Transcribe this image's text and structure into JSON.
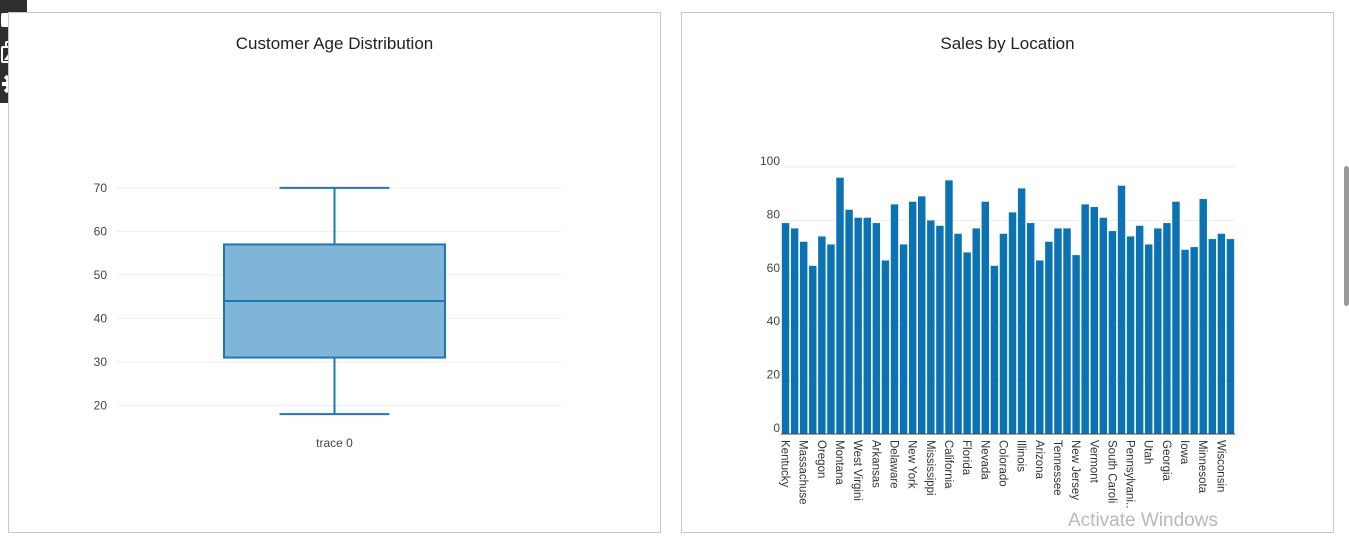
{
  "toolbar": {
    "icons": [
      "video-camera-icon",
      "image-gallery-icon",
      "gear-icon"
    ]
  },
  "watermark": "Activate Windows",
  "chart_data": [
    {
      "type": "box",
      "title": "Customer Age Distribution",
      "series": [
        {
          "name": "trace 0",
          "min": 18,
          "q1": 31,
          "median": 44,
          "q3": 57,
          "max": 70
        }
      ],
      "y_ticks": [
        20,
        30,
        40,
        50,
        60,
        70
      ],
      "ylim": [
        15.5,
        72.5
      ],
      "grid": true,
      "color": "#1f77b4",
      "fill": "#7fb6d8"
    },
    {
      "type": "bar",
      "title": "Sales by Location",
      "categories": [
        "Kentucky",
        "",
        "Massachuse",
        "",
        "Oregon",
        "",
        "Montana",
        "",
        "West Virgini",
        "",
        "Arkansas",
        "",
        "Delaware",
        "",
        "New York",
        "",
        "Mississippi",
        "",
        "California",
        "",
        "Florida",
        "",
        "Nevada",
        "",
        "Colorado",
        "",
        "Illinois",
        "",
        "Arizona",
        "",
        "Tennessee",
        "",
        "New Jersey",
        "",
        "Vermont",
        "",
        "South Caroli",
        "",
        "Pennsylvani..",
        "",
        "Utah",
        "",
        "Georgia",
        "",
        "Iowa",
        "",
        "Minnesota",
        "",
        "Wisconsin",
        ""
      ],
      "values": [
        79,
        77,
        72,
        63,
        74,
        71,
        96,
        84,
        81,
        81,
        79,
        65,
        86,
        71,
        87,
        89,
        80,
        78,
        95,
        75,
        68,
        77,
        87,
        63,
        75,
        83,
        92,
        79,
        65,
        72,
        77,
        77,
        67,
        86,
        85,
        81,
        76,
        93,
        74,
        78,
        71,
        77,
        79,
        87,
        69,
        70,
        88,
        73,
        75,
        73
      ],
      "y_ticks": [
        0,
        20,
        40,
        60,
        80,
        100
      ],
      "ylim": [
        0,
        100
      ],
      "grid": true,
      "color": "#0b72b4"
    }
  ]
}
